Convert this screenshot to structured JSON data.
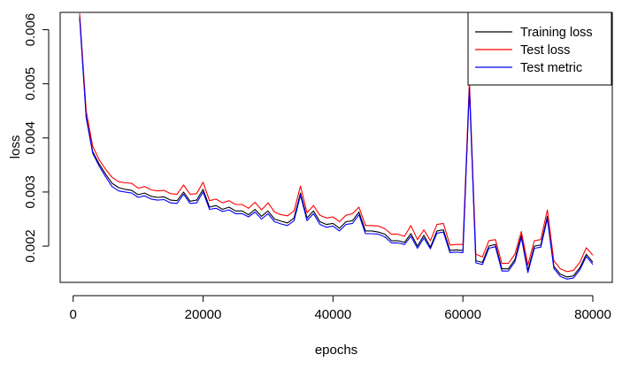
{
  "chart_data": {
    "type": "line",
    "xlabel": "epochs",
    "ylabel": "loss",
    "xlim": [
      -2000,
      83000
    ],
    "ylim": [
      0.00133,
      0.00632
    ],
    "x_ticks": [
      0,
      20000,
      40000,
      60000,
      80000
    ],
    "x_tick_labels": [
      "0",
      "20000",
      "40000",
      "60000",
      "80000"
    ],
    "y_ticks": [
      0.002,
      0.003,
      0.004,
      0.005,
      0.006
    ],
    "y_tick_labels": [
      "0.002",
      "0.003",
      "0.004",
      "0.005",
      "0.006"
    ],
    "grid": false,
    "legend_position": "top-right",
    "colors": {
      "training": "#000000",
      "test": "#ff0000",
      "metric": "#0000ff"
    },
    "x": [
      1000,
      2000,
      3000,
      4000,
      5000,
      6000,
      7000,
      8000,
      9000,
      10000,
      11000,
      12000,
      13000,
      14000,
      15000,
      16000,
      17000,
      18000,
      19000,
      20000,
      21000,
      22000,
      23000,
      24000,
      25000,
      26000,
      27000,
      28000,
      29000,
      30000,
      31000,
      32000,
      33000,
      34000,
      35000,
      36000,
      37000,
      38000,
      39000,
      40000,
      41000,
      42000,
      43000,
      44000,
      45000,
      46000,
      47000,
      48000,
      49000,
      50000,
      51000,
      52000,
      53000,
      54000,
      55000,
      56000,
      57000,
      58000,
      59000,
      60000,
      61000,
      62000,
      63000,
      64000,
      65000,
      66000,
      67000,
      68000,
      69000,
      70000,
      71000,
      72000,
      73000,
      74000,
      75000,
      76000,
      77000,
      78000,
      79000,
      80000
    ],
    "series": [
      {
        "name": "Training loss",
        "color": "#000000",
        "values": [
          0.00625,
          0.0044,
          0.00375,
          0.00352,
          0.00333,
          0.00316,
          0.00308,
          0.00305,
          0.00303,
          0.00295,
          0.00298,
          0.00292,
          0.0029,
          0.00291,
          0.00285,
          0.00284,
          0.003,
          0.00283,
          0.00285,
          0.00305,
          0.00272,
          0.00275,
          0.00268,
          0.00272,
          0.00265,
          0.00265,
          0.00258,
          0.00268,
          0.00255,
          0.00265,
          0.0025,
          0.00246,
          0.00243,
          0.00252,
          0.00298,
          0.00252,
          0.00265,
          0.00245,
          0.0024,
          0.00242,
          0.00233,
          0.00245,
          0.00247,
          0.00263,
          0.00228,
          0.00228,
          0.00226,
          0.00222,
          0.0021,
          0.0021,
          0.00207,
          0.00223,
          0.002,
          0.0022,
          0.00198,
          0.00228,
          0.0023,
          0.00192,
          0.00193,
          0.00192,
          0.00495,
          0.00173,
          0.0017,
          0.002,
          0.00203,
          0.00158,
          0.00158,
          0.00175,
          0.0022,
          0.00155,
          0.002,
          0.00202,
          0.00255,
          0.00163,
          0.00148,
          0.00143,
          0.00145,
          0.0016,
          0.00185,
          0.0017
        ]
      },
      {
        "name": "Test loss",
        "color": "#ff0000",
        "values": [
          0.0063,
          0.0045,
          0.00385,
          0.0036,
          0.00342,
          0.00327,
          0.00319,
          0.00317,
          0.00316,
          0.00307,
          0.0031,
          0.00304,
          0.00302,
          0.00303,
          0.00297,
          0.00296,
          0.00313,
          0.00296,
          0.00297,
          0.00318,
          0.00284,
          0.00287,
          0.0028,
          0.00284,
          0.00277,
          0.00277,
          0.0027,
          0.00281,
          0.00267,
          0.0028,
          0.00263,
          0.00258,
          0.00256,
          0.00265,
          0.00311,
          0.00262,
          0.00275,
          0.00257,
          0.00252,
          0.00254,
          0.00245,
          0.00257,
          0.0026,
          0.00272,
          0.00238,
          0.00238,
          0.00237,
          0.00232,
          0.00222,
          0.00222,
          0.00218,
          0.00238,
          0.00212,
          0.0023,
          0.0021,
          0.0024,
          0.00242,
          0.00202,
          0.00203,
          0.00203,
          0.00505,
          0.00185,
          0.0018,
          0.0021,
          0.00212,
          0.00168,
          0.00168,
          0.00185,
          0.00227,
          0.00165,
          0.0021,
          0.00212,
          0.00267,
          0.00173,
          0.00158,
          0.00153,
          0.00155,
          0.0017,
          0.00197,
          0.00183
        ]
      },
      {
        "name": "Test metric",
        "color": "#0000ff",
        "values": [
          0.00622,
          0.00437,
          0.00372,
          0.00348,
          0.00328,
          0.0031,
          0.00302,
          0.003,
          0.00298,
          0.0029,
          0.00293,
          0.00287,
          0.00285,
          0.00286,
          0.0028,
          0.00279,
          0.00296,
          0.00279,
          0.0028,
          0.003,
          0.00268,
          0.0027,
          0.00264,
          0.00267,
          0.0026,
          0.0026,
          0.00254,
          0.00263,
          0.0025,
          0.0026,
          0.00245,
          0.00241,
          0.00238,
          0.00247,
          0.00294,
          0.00247,
          0.0026,
          0.0024,
          0.00235,
          0.00237,
          0.00228,
          0.0024,
          0.00242,
          0.00258,
          0.00223,
          0.00223,
          0.00222,
          0.00217,
          0.00206,
          0.00206,
          0.00203,
          0.00218,
          0.00196,
          0.00215,
          0.00195,
          0.00224,
          0.00226,
          0.00188,
          0.00189,
          0.00188,
          0.00492,
          0.00169,
          0.00166,
          0.00196,
          0.00199,
          0.00154,
          0.00154,
          0.00171,
          0.00216,
          0.00151,
          0.00196,
          0.00198,
          0.00251,
          0.00159,
          0.00144,
          0.00139,
          0.00141,
          0.00156,
          0.00181,
          0.00166
        ]
      }
    ]
  }
}
